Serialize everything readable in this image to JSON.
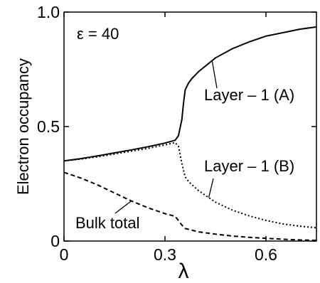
{
  "chart_data": {
    "type": "line",
    "xlabel": "λ",
    "ylabel": "Electron occupancy",
    "xlim": [
      0,
      0.75
    ],
    "ylim": [
      0,
      1.0
    ],
    "xticks": [
      {
        "value": 0,
        "label": "0"
      },
      {
        "value": 0.3,
        "label": "0.3"
      },
      {
        "value": 0.6,
        "label": "0.6"
      }
    ],
    "yticks": [
      {
        "value": 0,
        "label": "0"
      },
      {
        "value": 0.5,
        "label": "0.5"
      },
      {
        "value": 1.0,
        "label": "1.0"
      }
    ],
    "parameter_label": "ε = 40",
    "grid": false,
    "series": [
      {
        "name": "Layer – 1 (A)",
        "style": "solid",
        "color": "#000000",
        "points": [
          [
            0,
            0.35
          ],
          [
            0.05,
            0.36
          ],
          [
            0.1,
            0.372
          ],
          [
            0.15,
            0.385
          ],
          [
            0.2,
            0.398
          ],
          [
            0.25,
            0.412
          ],
          [
            0.3,
            0.428
          ],
          [
            0.33,
            0.44
          ],
          [
            0.34,
            0.46
          ],
          [
            0.35,
            0.53
          ],
          [
            0.355,
            0.6
          ],
          [
            0.36,
            0.66
          ],
          [
            0.37,
            0.69
          ],
          [
            0.38,
            0.71
          ],
          [
            0.4,
            0.74
          ],
          [
            0.45,
            0.8
          ],
          [
            0.5,
            0.84
          ],
          [
            0.55,
            0.87
          ],
          [
            0.6,
            0.895
          ],
          [
            0.65,
            0.91
          ],
          [
            0.7,
            0.925
          ],
          [
            0.75,
            0.935
          ]
        ]
      },
      {
        "name": "Layer – 1 (B)",
        "style": "dotted",
        "color": "#000000",
        "points": [
          [
            0,
            0.35
          ],
          [
            0.05,
            0.358
          ],
          [
            0.1,
            0.368
          ],
          [
            0.15,
            0.38
          ],
          [
            0.2,
            0.393
          ],
          [
            0.25,
            0.405
          ],
          [
            0.3,
            0.42
          ],
          [
            0.33,
            0.43
          ],
          [
            0.34,
            0.415
          ],
          [
            0.35,
            0.34
          ],
          [
            0.36,
            0.28
          ],
          [
            0.37,
            0.26
          ],
          [
            0.4,
            0.22
          ],
          [
            0.45,
            0.17
          ],
          [
            0.5,
            0.135
          ],
          [
            0.55,
            0.11
          ],
          [
            0.6,
            0.09
          ],
          [
            0.65,
            0.075
          ],
          [
            0.7,
            0.065
          ],
          [
            0.75,
            0.058
          ]
        ]
      },
      {
        "name": "Bulk total",
        "style": "dashed",
        "color": "#000000",
        "points": [
          [
            0,
            0.3
          ],
          [
            0.05,
            0.275
          ],
          [
            0.1,
            0.245
          ],
          [
            0.15,
            0.21
          ],
          [
            0.2,
            0.175
          ],
          [
            0.25,
            0.145
          ],
          [
            0.3,
            0.12
          ],
          [
            0.33,
            0.108
          ],
          [
            0.34,
            0.09
          ],
          [
            0.35,
            0.07
          ],
          [
            0.36,
            0.055
          ],
          [
            0.4,
            0.04
          ],
          [
            0.45,
            0.03
          ],
          [
            0.5,
            0.022
          ],
          [
            0.55,
            0.016
          ],
          [
            0.6,
            0.012
          ],
          [
            0.65,
            0.008
          ],
          [
            0.7,
            0.005
          ],
          [
            0.75,
            0.003
          ]
        ]
      }
    ],
    "annotations": [
      {
        "text": "Layer – 1 (A)",
        "series": 0,
        "at_x": 0.44
      },
      {
        "text": "Layer – 1 (B)",
        "series": 1,
        "at_x": 0.43
      },
      {
        "text": "Bulk total",
        "series": 2,
        "at_x": 0.2
      }
    ]
  }
}
